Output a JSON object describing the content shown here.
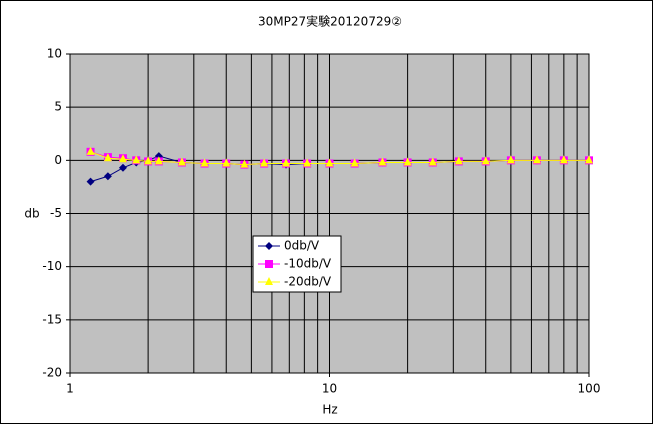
{
  "chart_data": {
    "type": "line",
    "title": "30MP27実験20120729②",
    "x_label": "Hz",
    "y_label": "db",
    "x": [
      1.2,
      1.4,
      1.6,
      1.8,
      2,
      2.2,
      2.7,
      3.3,
      4,
      4.7,
      5.6,
      6.8,
      8.2,
      10,
      12.5,
      16,
      20,
      25,
      31.5,
      40,
      50,
      63,
      80,
      100
    ],
    "series": [
      {
        "name": "0db/V",
        "color": "#000080",
        "marker": "diamond",
        "values": [
          -2,
          -1.5,
          -0.7,
          -0.2,
          0,
          0.4,
          -0.2,
          -0.3,
          -0.3,
          -0.4,
          -0.3,
          -0.4,
          -0.3,
          -0.3,
          -0.3,
          -0.2,
          -0.2,
          -0.2,
          -0.1,
          -0.1,
          0,
          0,
          0,
          0
        ]
      },
      {
        "name": "-10db/V",
        "color": "#FF00FF",
        "marker": "square",
        "values": [
          0.8,
          0.3,
          0.2,
          0,
          -0.1,
          -0.1,
          -0.2,
          -0.3,
          -0.3,
          -0.4,
          -0.3,
          -0.3,
          -0.3,
          -0.3,
          -0.3,
          -0.2,
          -0.2,
          -0.2,
          -0.1,
          -0.1,
          0,
          0,
          0,
          0
        ]
      },
      {
        "name": "-20db/V",
        "color": "#FFFF00",
        "marker": "triangle",
        "values": [
          0.8,
          0.2,
          0.1,
          0,
          -0.1,
          -0.1,
          -0.2,
          -0.3,
          -0.3,
          -0.4,
          -0.3,
          -0.3,
          -0.3,
          -0.3,
          -0.3,
          -0.2,
          -0.2,
          -0.2,
          -0.1,
          -0.1,
          0,
          0,
          0,
          0
        ]
      }
    ],
    "x_log": true,
    "xlim": [
      1,
      100
    ],
    "xticks": [
      1,
      10,
      100
    ],
    "xminor": [
      2,
      3,
      4,
      5,
      6,
      7,
      8,
      9,
      20,
      30,
      40,
      50,
      60,
      70,
      80,
      90
    ],
    "ylim": [
      -20,
      10
    ],
    "yticks": [
      -20,
      -15,
      -10,
      -5,
      0,
      5,
      10
    ],
    "grid": true,
    "plot_background": "#C0C0C0"
  }
}
